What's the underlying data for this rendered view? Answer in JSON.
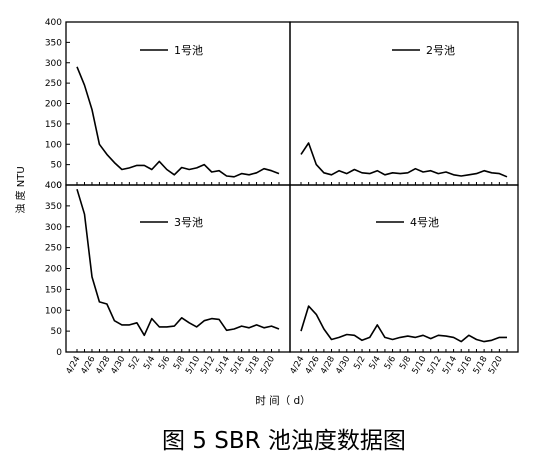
{
  "figure": {
    "y_axis_label": "浊 度 NTU",
    "x_axis_label": "时 间（ d）",
    "caption": "图 5  SBR 池浊度数据图"
  },
  "chart_data": [
    {
      "type": "line",
      "legend": "1号池",
      "x": [
        "4/24",
        "4/25",
        "4/26",
        "4/27",
        "4/28",
        "4/29",
        "4/30",
        "5/1",
        "5/2",
        "5/3",
        "5/4",
        "5/5",
        "5/6",
        "5/7",
        "5/8",
        "5/9",
        "5/10",
        "5/11",
        "5/12",
        "5/13",
        "5/14",
        "5/15",
        "5/16",
        "5/17",
        "5/18",
        "5/19",
        "5/20",
        "5/21"
      ],
      "series": [
        {
          "name": "1号池",
          "values": [
            290,
            245,
            185,
            100,
            75,
            55,
            38,
            42,
            48,
            48,
            38,
            58,
            38,
            25,
            43,
            38,
            42,
            50,
            32,
            35,
            22,
            20,
            28,
            25,
            30,
            40,
            35,
            28
          ]
        }
      ],
      "ylim": [
        0,
        400
      ],
      "yticks": [
        0,
        50,
        100,
        150,
        200,
        250,
        300,
        350,
        400
      ],
      "xticklabels": [
        "4/24",
        "4/26",
        "4/28",
        "4/30",
        "5/2",
        "5/4",
        "5/6",
        "5/8",
        "5/10",
        "5/12",
        "5/14",
        "5/16",
        "5/18",
        "5/20"
      ]
    },
    {
      "type": "line",
      "legend": "2号池",
      "x": [
        "4/24",
        "4/25",
        "4/26",
        "4/27",
        "4/28",
        "4/29",
        "4/30",
        "5/1",
        "5/2",
        "5/3",
        "5/4",
        "5/5",
        "5/6",
        "5/7",
        "5/8",
        "5/9",
        "5/10",
        "5/11",
        "5/12",
        "5/13",
        "5/14",
        "5/15",
        "5/16",
        "5/17",
        "5/18",
        "5/19",
        "5/20",
        "5/21"
      ],
      "series": [
        {
          "name": "2号池",
          "values": [
            75,
            103,
            50,
            30,
            25,
            35,
            28,
            38,
            30,
            28,
            35,
            25,
            30,
            28,
            30,
            40,
            32,
            35,
            28,
            32,
            25,
            22,
            25,
            28,
            35,
            30,
            28,
            20
          ]
        }
      ],
      "ylim": [
        0,
        400
      ]
    },
    {
      "type": "line",
      "legend": "3号池",
      "x": [
        "4/24",
        "4/25",
        "4/26",
        "4/27",
        "4/28",
        "4/29",
        "4/30",
        "5/1",
        "5/2",
        "5/3",
        "5/4",
        "5/5",
        "5/6",
        "5/7",
        "5/8",
        "5/9",
        "5/10",
        "5/11",
        "5/12",
        "5/13",
        "5/14",
        "5/15",
        "5/16",
        "5/17",
        "5/18",
        "5/19",
        "5/20",
        "5/21"
      ],
      "series": [
        {
          "name": "3号池",
          "values": [
            390,
            330,
            180,
            120,
            115,
            75,
            65,
            65,
            70,
            40,
            80,
            60,
            60,
            62,
            82,
            70,
            60,
            75,
            80,
            78,
            52,
            55,
            62,
            58,
            65,
            58,
            62,
            55
          ]
        }
      ],
      "ylim": [
        0,
        400
      ],
      "yticks": [
        0,
        50,
        100,
        150,
        200,
        250,
        300,
        350,
        400
      ],
      "xticklabels": [
        "4/24",
        "4/26",
        "4/28",
        "4/30",
        "5/2",
        "5/4",
        "5/6",
        "5/8",
        "5/10",
        "5/12",
        "5/14",
        "5/16",
        "5/18",
        "5/20"
      ]
    },
    {
      "type": "line",
      "legend": "4号池",
      "x": [
        "4/24",
        "4/25",
        "4/26",
        "4/27",
        "4/28",
        "4/29",
        "4/30",
        "5/1",
        "5/2",
        "5/3",
        "5/4",
        "5/5",
        "5/6",
        "5/7",
        "5/8",
        "5/9",
        "5/10",
        "5/11",
        "5/12",
        "5/13",
        "5/14",
        "5/15",
        "5/16",
        "5/17",
        "5/18",
        "5/19",
        "5/20",
        "5/21"
      ],
      "series": [
        {
          "name": "4号池",
          "values": [
            50,
            110,
            90,
            55,
            30,
            35,
            42,
            40,
            28,
            35,
            65,
            35,
            30,
            35,
            38,
            35,
            40,
            32,
            40,
            38,
            35,
            25,
            40,
            30,
            25,
            28,
            35,
            35
          ]
        }
      ],
      "ylim": [
        0,
        400
      ],
      "xticklabels": [
        "4/24",
        "4/26",
        "4/28",
        "4/30",
        "5/2",
        "5/4",
        "5/6",
        "5/8",
        "5/10",
        "5/12",
        "5/14",
        "5/16",
        "5/18",
        "5/20"
      ]
    }
  ]
}
